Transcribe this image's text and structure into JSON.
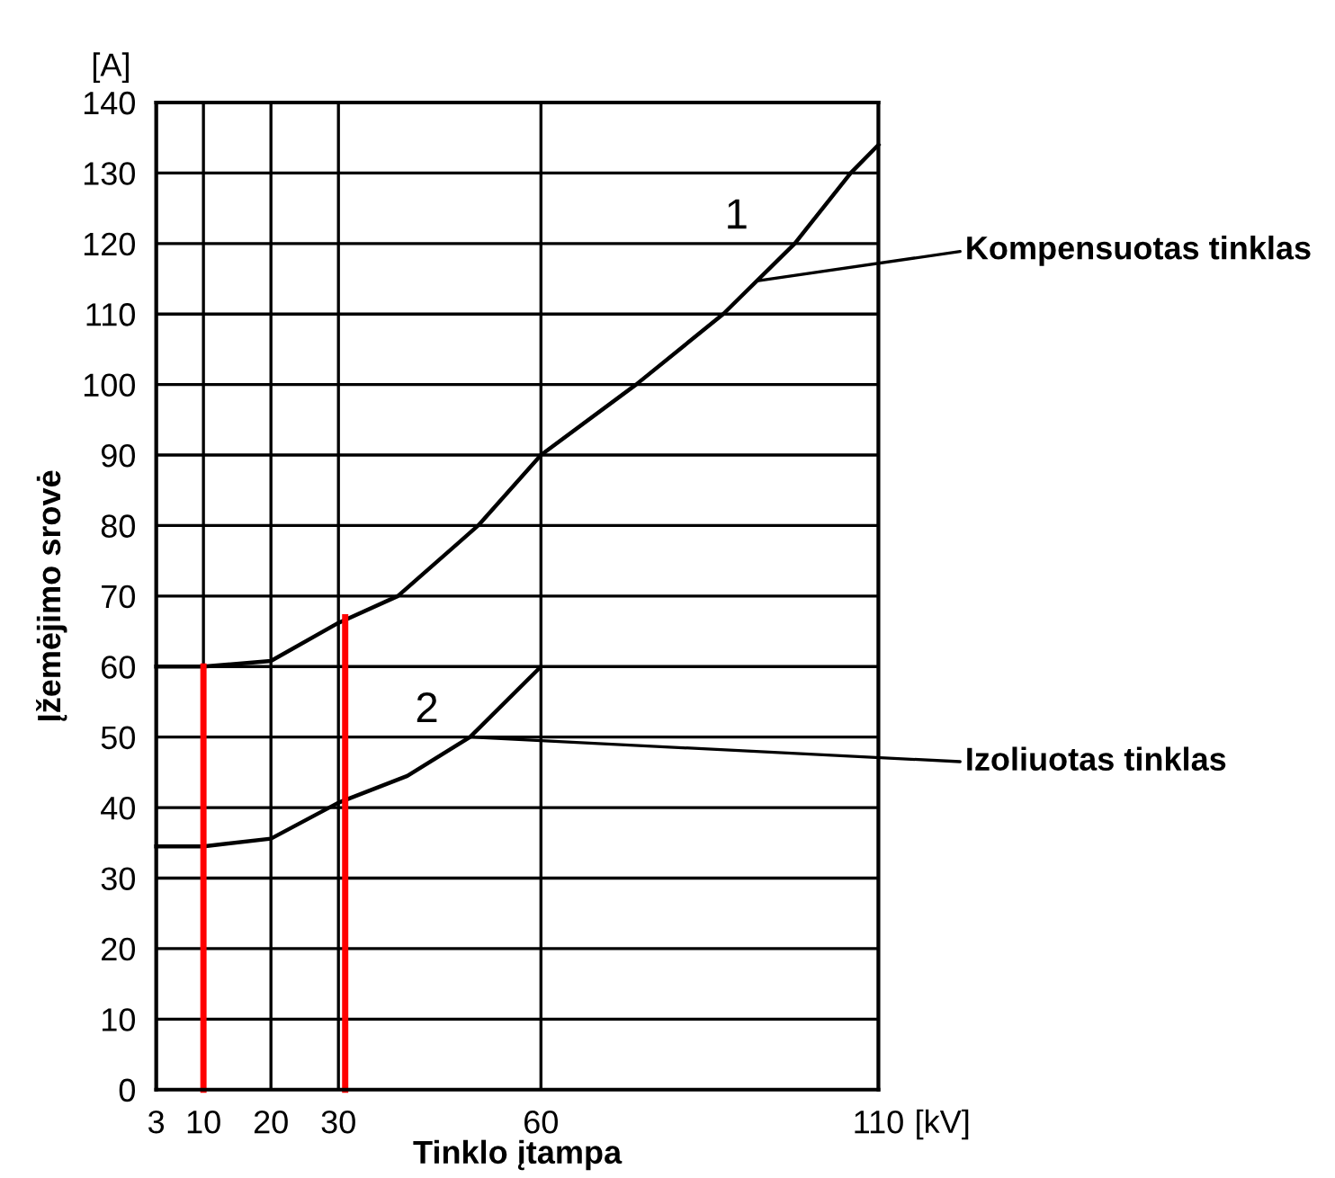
{
  "chart_data": {
    "type": "line",
    "xlabel": "Tinklo įtampa",
    "ylabel": "Įžemėjimo srovė",
    "xlim": [
      3,
      110
    ],
    "xticks": [
      3,
      10,
      20,
      30,
      60,
      110
    ],
    "ylim": [
      0,
      140
    ],
    "yticks": [
      0,
      10,
      20,
      30,
      40,
      50,
      60,
      70,
      80,
      90,
      100,
      110,
      120,
      130,
      140
    ],
    "grid": true,
    "marker": "none",
    "line_style": "solid",
    "series": [
      {
        "name": "1",
        "color": "#000000",
        "x": [
          3,
          10,
          20,
          30,
          38.8,
          50.7,
          60,
          74.1,
          87,
          97.6,
          105.9,
          110
        ],
        "values": [
          60,
          60,
          60.8,
          66.2,
          70,
          80,
          90,
          100,
          110,
          120,
          130,
          134
        ]
      },
      {
        "name": "2",
        "color": "#000000",
        "x": [
          3,
          10,
          20,
          30,
          40.2,
          49.5,
          60
        ],
        "values": [
          34.5,
          34.5,
          35.6,
          40.7,
          44.5,
          50,
          60
        ]
      },
      {
        "color": "#ff0000",
        "x": [
          10,
          10
        ],
        "values": [
          0,
          60
        ]
      },
      {
        "color": "#ff0000",
        "x": [
          31,
          31
        ],
        "values": [
          0,
          67
        ]
      }
    ],
    "annotations": [
      {
        "text": "Kompensuotas tinklas",
        "x": 92,
        "y": 114.7
      },
      {
        "text": "Izoliuotas tinklas",
        "x": 49.5,
        "y": 50
      },
      "[A]",
      "[kV]"
    ]
  }
}
